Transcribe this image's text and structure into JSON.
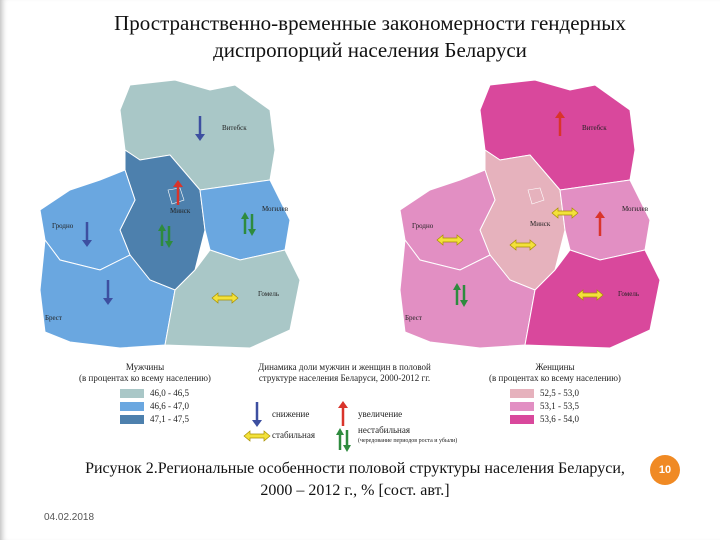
{
  "header": {
    "title": "Пространственно-временные закономерности гендерных диспропорций населения Беларуси"
  },
  "maps": [
    {
      "cities": [
        "Витебск",
        "Минск",
        "Гродно",
        "Могилев",
        "Брест",
        "Гомель"
      ]
    },
    {
      "cities": [
        "Витебск",
        "Минск",
        "Гродно",
        "Могилев",
        "Брест",
        "Гомель"
      ]
    }
  ],
  "legends": {
    "men": {
      "title": "Мужчины",
      "subtitle": "(в процентах ко всему населению)",
      "items": [
        "46,0 - 46,5",
        "46,6 - 47,0",
        "47,1 - 47,5"
      ]
    },
    "dynamics": {
      "title": "Динамика доли мужчин и женщин в половой структуре населения Беларуси, 2000-2012 гг.",
      "items": [
        "снижение",
        "увеличение",
        "стабильная",
        "нестабильная",
        "(чередование периодов роста и убыли)"
      ]
    },
    "women": {
      "title": "Женщины",
      "subtitle": "(в процентах ко всему населению)",
      "items": [
        "52,5 - 53,0",
        "53,1 - 53,5",
        "53,6 - 54,0"
      ]
    }
  },
  "caption": "Рисунок 2.Региональные особенности половой структуры населения Беларуси, 2000 – 2012 г., % [сост. авт.]",
  "footer": {
    "date": "04.02.2018",
    "page": "10"
  }
}
